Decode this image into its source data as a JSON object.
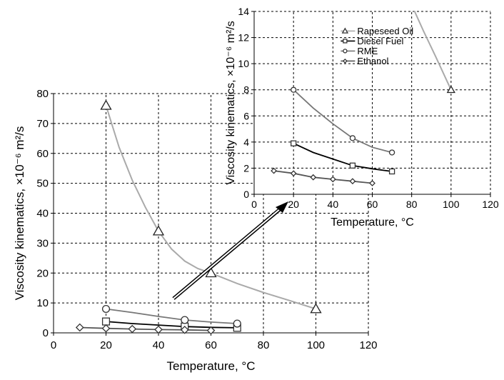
{
  "chart_data": [
    {
      "type": "line",
      "xlabel": "Temperature, °C",
      "ylabel": "Viscosity kinematics, ×10⁻⁶ m²/s",
      "xlim": [
        0,
        120
      ],
      "ylim": [
        0,
        80
      ],
      "xticks": [
        "0",
        "20",
        "40",
        "60",
        "80",
        "100",
        "120"
      ],
      "yticks": [
        "0",
        "10",
        "20",
        "30",
        "40",
        "50",
        "60",
        "70",
        "80"
      ],
      "grid": "dashed",
      "series": [
        {
          "name": "Rapeseed Oil",
          "color": "#aaaaaa",
          "marker": "triangle",
          "x": [
            20,
            40,
            60,
            100
          ],
          "y": [
            76,
            34,
            20,
            8
          ],
          "curve": [
            [
              20,
              76
            ],
            [
              25,
              62
            ],
            [
              30,
              51
            ],
            [
              35,
              42
            ],
            [
              40,
              34
            ],
            [
              45,
              28
            ],
            [
              50,
              24
            ],
            [
              55,
              21.5
            ],
            [
              60,
              20
            ],
            [
              70,
              16.5
            ],
            [
              80,
              13.5
            ],
            [
              90,
              10.8
            ],
            [
              100,
              8
            ]
          ]
        },
        {
          "name": "Diesel Fuel",
          "color": "#000000",
          "marker": "square",
          "x": [
            20,
            50,
            70
          ],
          "y": [
            3.8,
            2.1,
            1.7
          ],
          "curve": [
            [
              20,
              3.8
            ],
            [
              30,
              3.1
            ],
            [
              40,
              2.6
            ],
            [
              50,
              2.1
            ],
            [
              60,
              1.85
            ],
            [
              70,
              1.7
            ]
          ]
        },
        {
          "name": "RME",
          "color": "#777777",
          "marker": "circle",
          "x": [
            20,
            50,
            70
          ],
          "y": [
            8,
            4.3,
            3.1
          ],
          "curve": [
            [
              20,
              8
            ],
            [
              30,
              6.8
            ],
            [
              40,
              5.5
            ],
            [
              50,
              4.3
            ],
            [
              60,
              3.6
            ],
            [
              70,
              3.1
            ]
          ]
        },
        {
          "name": "Ethanol",
          "color": "#555555",
          "marker": "diamond",
          "x": [
            10,
            20,
            30,
            40,
            50,
            60
          ],
          "y": [
            1.8,
            1.5,
            1.3,
            1.1,
            1.0,
            0.8
          ]
        }
      ]
    },
    {
      "type": "line",
      "xlabel": "Temperature, °C",
      "ylabel": "Viscosity kinematics, ×10⁻⁶ m²/s",
      "xlim": [
        0,
        120
      ],
      "ylim": [
        0,
        14
      ],
      "xticks": [
        "0",
        "20",
        "40",
        "60",
        "80",
        "100",
        "120"
      ],
      "yticks": [
        "0",
        "2",
        "4",
        "6",
        "8",
        "10",
        "12",
        "14"
      ],
      "grid": "dashed",
      "legend": [
        "Rapeseed Oil",
        "Diesel Fuel",
        "RME",
        "Ethanol"
      ],
      "legend_position": "top-left",
      "series": [
        {
          "name": "Rapeseed Oil",
          "color": "#aaaaaa",
          "marker": "triangle",
          "x": [
            100
          ],
          "y": [
            8
          ],
          "curve": [
            [
              80,
              14.5
            ],
            [
              86,
              12.5
            ],
            [
              92,
              10.6
            ],
            [
              100,
              8
            ]
          ]
        },
        {
          "name": "Diesel Fuel",
          "color": "#000000",
          "marker": "square",
          "x": [
            20,
            50,
            70
          ],
          "y": [
            3.9,
            2.2,
            1.75
          ],
          "curve": [
            [
              20,
              3.9
            ],
            [
              30,
              3.2
            ],
            [
              40,
              2.7
            ],
            [
              50,
              2.2
            ],
            [
              60,
              1.95
            ],
            [
              70,
              1.75
            ]
          ]
        },
        {
          "name": "RME",
          "color": "#777777",
          "marker": "circle",
          "x": [
            20,
            50,
            70
          ],
          "y": [
            8,
            4.3,
            3.2
          ],
          "curve": [
            [
              20,
              8
            ],
            [
              30,
              6.6
            ],
            [
              40,
              5.4
            ],
            [
              50,
              4.3
            ],
            [
              60,
              3.6
            ],
            [
              70,
              3.2
            ]
          ]
        },
        {
          "name": "Ethanol",
          "color": "#555555",
          "marker": "diamond",
          "x": [
            10,
            20,
            30,
            40,
            50,
            60
          ],
          "y": [
            1.8,
            1.6,
            1.3,
            1.15,
            1.0,
            0.85
          ]
        }
      ]
    }
  ]
}
